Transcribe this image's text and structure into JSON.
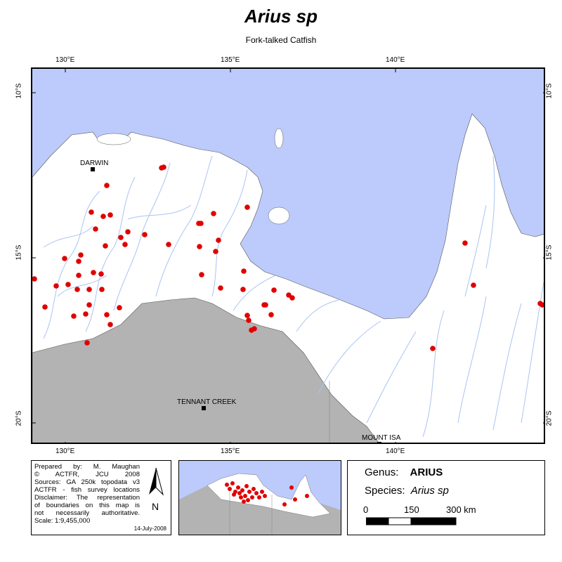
{
  "title": "Arius sp",
  "subtitle": "Fork-talked Catfish",
  "graticule": {
    "top_labels": [
      "130°E",
      "135°E",
      "140°E"
    ],
    "bottom_labels": [
      "130°E",
      "135°E",
      "140°E"
    ],
    "left_labels": [
      "10°S",
      "15°S",
      "20°S"
    ],
    "right_labels": [
      "10°S",
      "15°S",
      "20°S"
    ]
  },
  "places": {
    "darwin": "DARWIN",
    "tennant_creek": "TENNANT CREEK",
    "mount_isa": "MOUNT ISA"
  },
  "credits": {
    "lines": [
      "Prepared by: M. Maughan",
      "© ACTFR, JCU 2008",
      "Sources: GA 250k topodata v3",
      "ACTFR - fish survey locations",
      "Disclaimer: The representation",
      "of boundaries on this map is",
      "not necessarily authoritative.",
      "Scale: 1:9,455,000"
    ],
    "date": "14-July-2008"
  },
  "north_arrow": {
    "label": "N",
    "icon": "north-arrow-icon"
  },
  "legend": {
    "genus_label": "Genus:",
    "genus_value": "ARIUS",
    "species_label": "Species:",
    "species_value": "Arius sp",
    "scale_labels": [
      "0",
      "150",
      "300 km"
    ]
  },
  "colors": {
    "sea": "#bccbfb",
    "land": "#ffffff",
    "outside_region": "#b3b3b3",
    "rivers": "#a9c4f3",
    "records": "#e00000"
  }
}
